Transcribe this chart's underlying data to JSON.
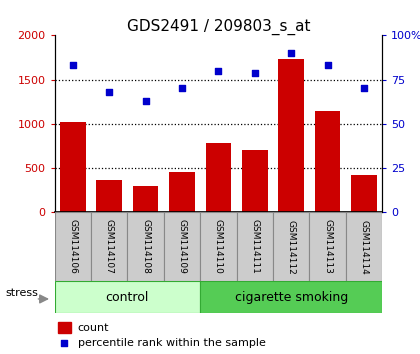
{
  "title": "GDS2491 / 209803_s_at",
  "samples": [
    "GSM114106",
    "GSM114107",
    "GSM114108",
    "GSM114109",
    "GSM114110",
    "GSM114111",
    "GSM114112",
    "GSM114113",
    "GSM114114"
  ],
  "counts": [
    1020,
    370,
    300,
    460,
    780,
    700,
    1730,
    1145,
    420
  ],
  "percentiles": [
    83,
    68,
    63,
    70,
    80,
    79,
    90,
    83,
    70
  ],
  "bar_color": "#cc0000",
  "dot_color": "#0000cc",
  "ylim_left": [
    0,
    2000
  ],
  "ylim_right": [
    0,
    100
  ],
  "yticks_left": [
    0,
    500,
    1000,
    1500,
    2000
  ],
  "yticks_right": [
    0,
    25,
    50,
    75,
    100
  ],
  "ytick_labels_left": [
    "0",
    "500",
    "1000",
    "1500",
    "2000"
  ],
  "ytick_labels_right": [
    "0",
    "25",
    "50",
    "75",
    "100%"
  ],
  "grid_values": [
    500,
    1000,
    1500
  ],
  "control_samples": 4,
  "smoking_samples": 5,
  "control_label": "control",
  "smoking_label": "cigarette smoking",
  "stress_label": "stress",
  "control_color": "#ccffcc",
  "smoking_color": "#55cc55",
  "sample_box_color": "#cccccc",
  "sample_box_edge": "#888888",
  "legend_count_label": "count",
  "legend_pct_label": "percentile rank within the sample",
  "title_fontsize": 11,
  "tick_fontsize": 8,
  "label_fontsize": 6.5,
  "group_fontsize": 9,
  "legend_fontsize": 8
}
